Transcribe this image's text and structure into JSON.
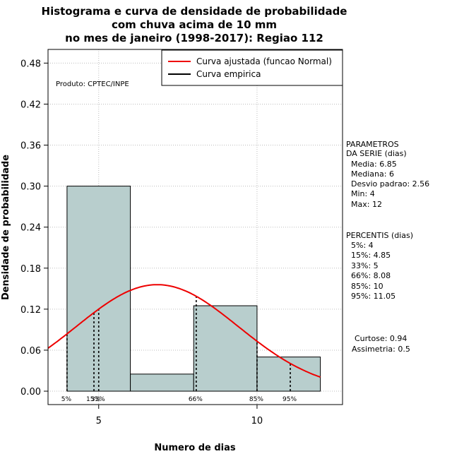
{
  "chart_data": {
    "type": "bar",
    "title_lines": [
      "Histograma e curva de densidade de probabilidade",
      "com chuva acima de 10 mm",
      "no mes de janeiro (1998-2017): Regiao 112"
    ],
    "xlabel": "Numero de dias",
    "ylabel": "Densidade de probabilidade",
    "xlim": [
      3.4,
      12.7
    ],
    "ylim": [
      -0.0196,
      0.5
    ],
    "x_ticks": [
      5,
      10
    ],
    "y_ticks": [
      0.0,
      0.06,
      0.12,
      0.18,
      0.24,
      0.3,
      0.36,
      0.42,
      0.48
    ],
    "y_tick_labels": [
      "0.00",
      "0.06",
      "0.12",
      "0.18",
      "0.24",
      "0.30",
      "0.36",
      "0.42",
      "0.48"
    ],
    "bins": [
      {
        "x0": 4,
        "x1": 6,
        "density": 0.3
      },
      {
        "x0": 6,
        "x1": 8,
        "density": 0.025
      },
      {
        "x0": 8,
        "x1": 10,
        "density": 0.125
      },
      {
        "x0": 10,
        "x1": 12,
        "density": 0.05
      }
    ],
    "bar_color": "#b8cecd",
    "grid": true,
    "normal_fit": {
      "mean": 6.85,
      "sd": 2.56,
      "color": "#ee0000"
    },
    "percentile_lines": [
      {
        "label": "5%",
        "x": 4
      },
      {
        "label": "15%",
        "x": 4.85
      },
      {
        "label": "33%",
        "x": 5
      },
      {
        "label": "66%",
        "x": 8.08
      },
      {
        "label": "85%",
        "x": 10
      },
      {
        "label": "95%",
        "x": 11.05
      }
    ],
    "legend": {
      "placement": "top-right",
      "entries": [
        {
          "label": "Curva ajustada (funcao Normal)",
          "color": "#ee0000"
        },
        {
          "label": "Curva empirica",
          "color": "#000000"
        }
      ]
    },
    "annotation": "Produto: CPTEC/INPE"
  },
  "side_panel": {
    "params_title": [
      "PARAMETROS",
      "DA SERIE (dias)"
    ],
    "params": [
      "Media: 6.85",
      "Mediana: 6",
      "Desvio padrao: 2.56",
      "Min: 4",
      "Max: 12"
    ],
    "percentis_title": "PERCENTIS (dias)",
    "percentis": [
      "5%: 4",
      "15%: 4.85",
      "33%: 5",
      "66%: 8.08",
      "85%: 10",
      "95%: 11.05"
    ],
    "shape": [
      "Curtose: 0.94",
      "Assimetria: 0.5"
    ]
  }
}
